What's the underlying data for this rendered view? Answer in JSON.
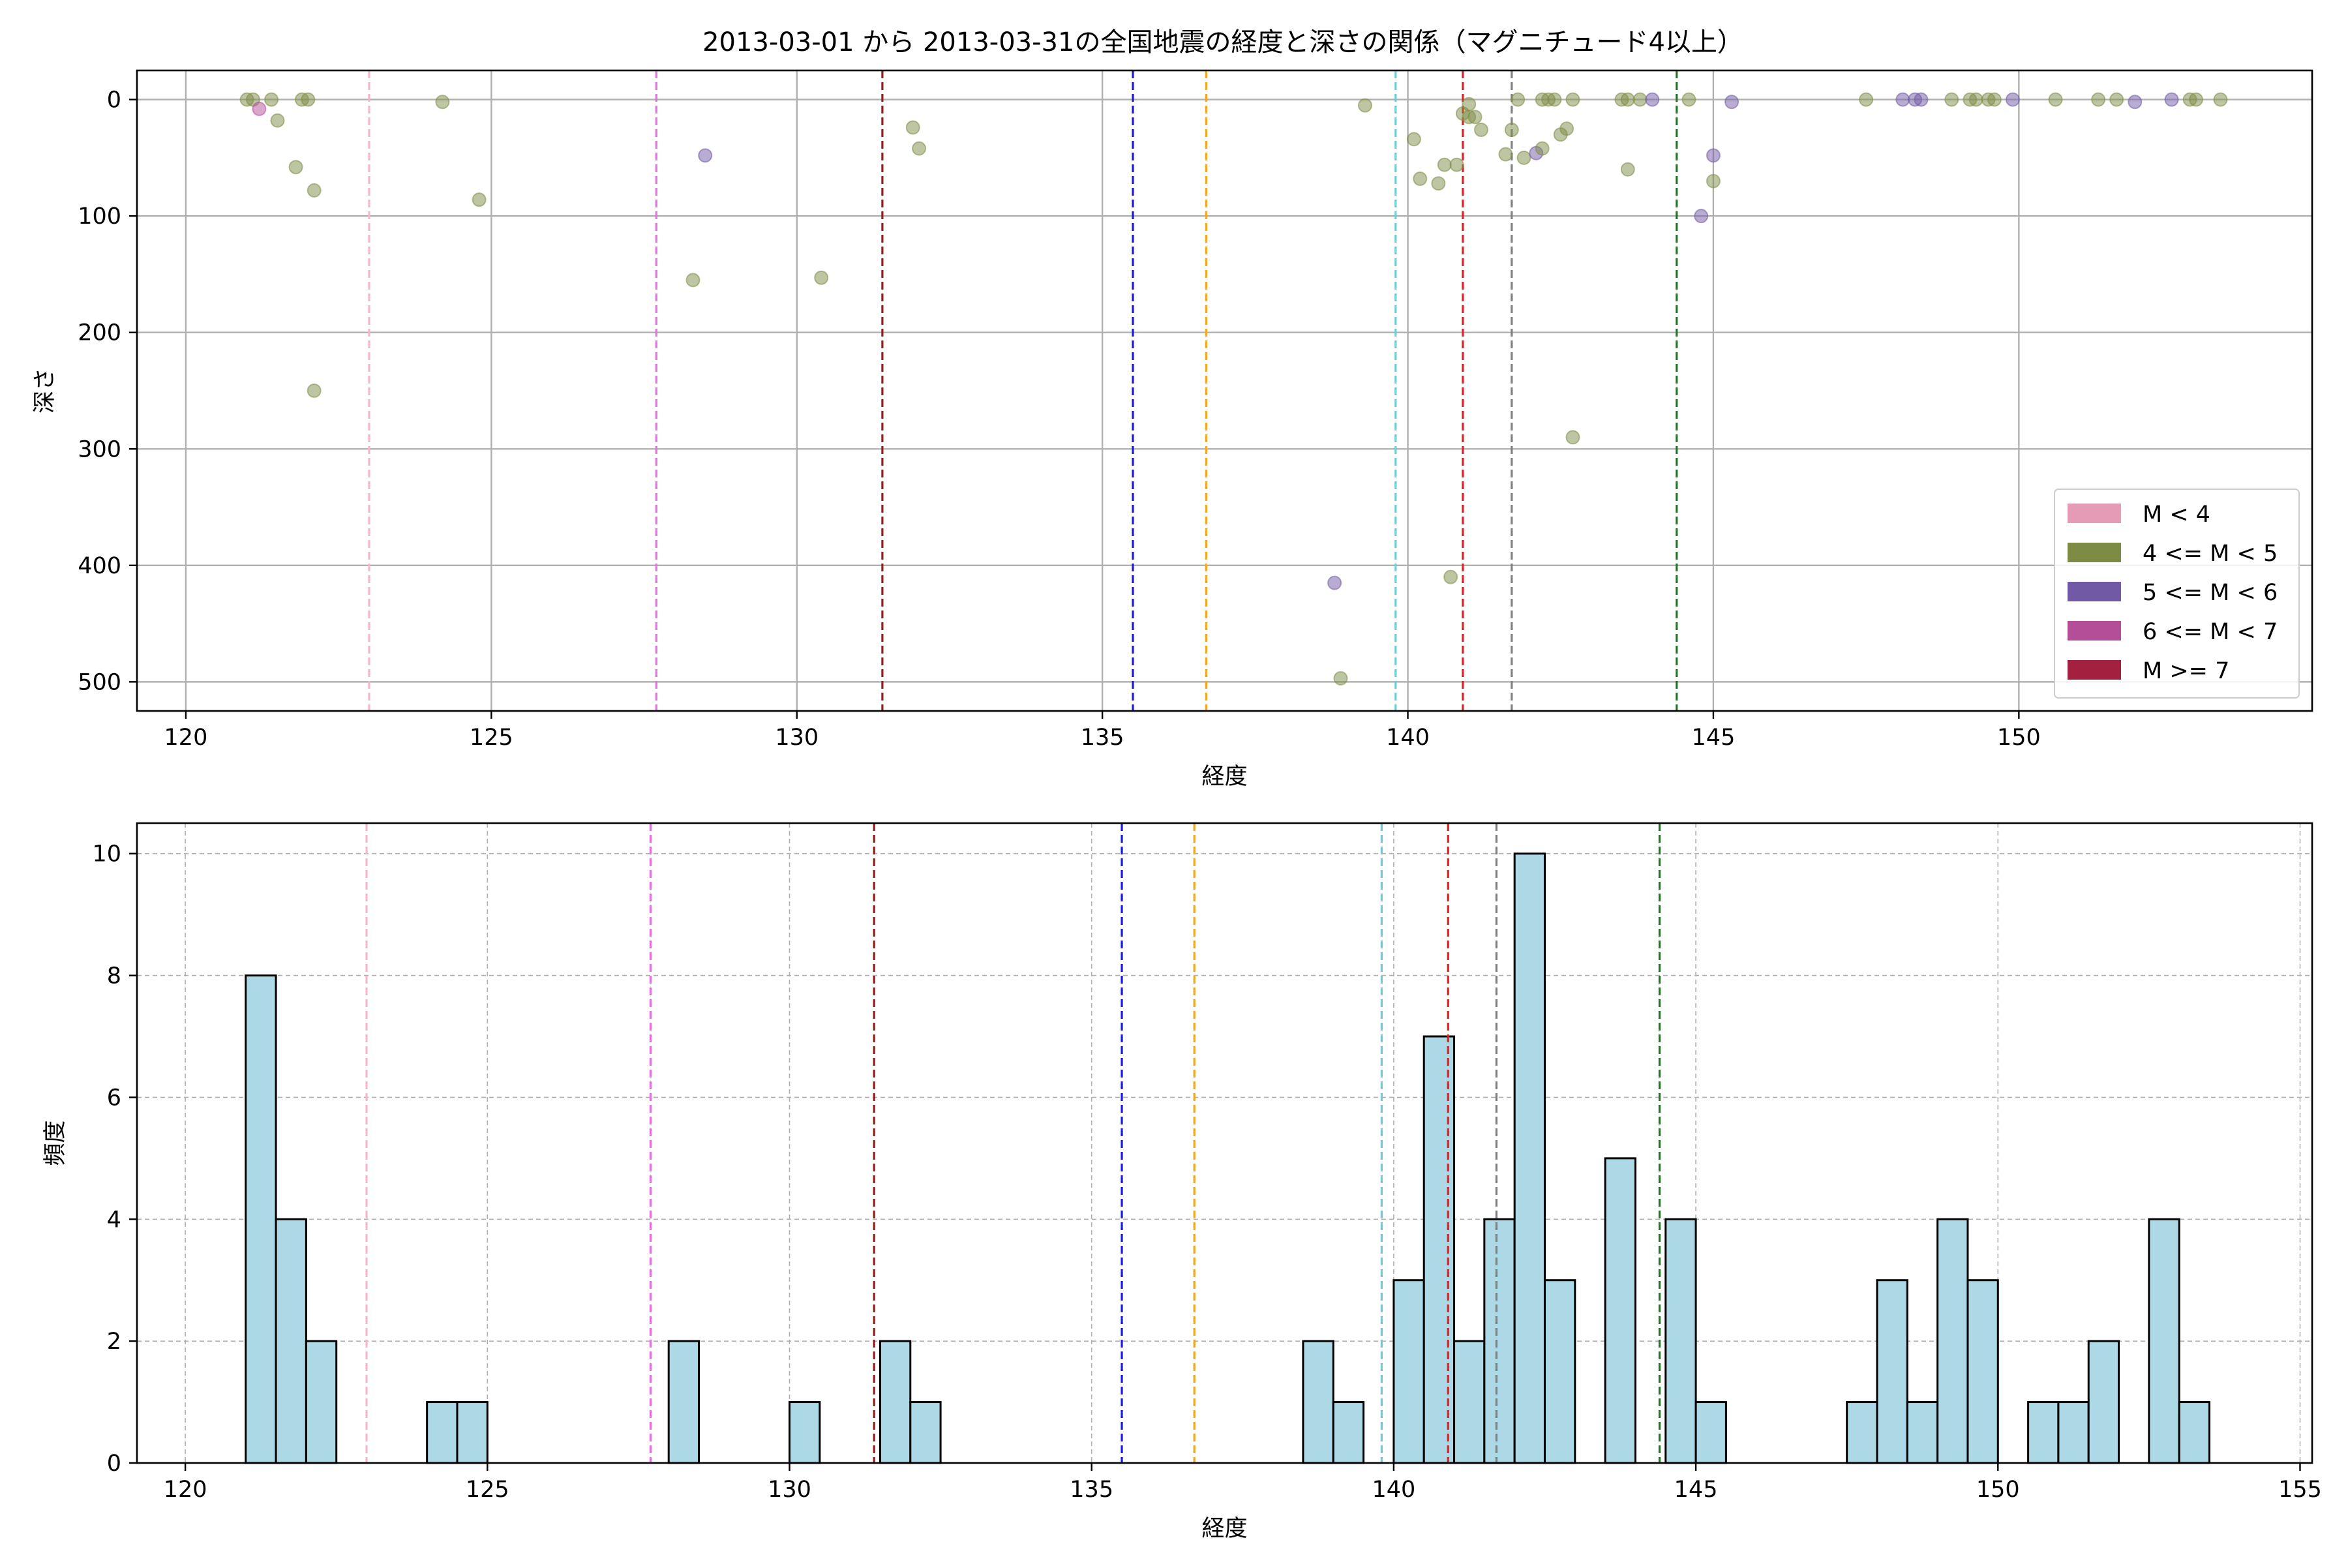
{
  "figure": {
    "title": "2013-03-01 から 2013-03-31の全国地震の経度と深さの関係（マグニチュード4以上）"
  },
  "chart_data": [
    {
      "type": "scatter",
      "xlabel": "経度",
      "ylabel": "深さ",
      "xlim": [
        119.2,
        154.8
      ],
      "ylim": [
        525,
        -25
      ],
      "y_inverted": true,
      "xticks": [
        120,
        125,
        130,
        135,
        140,
        145,
        150
      ],
      "yticks": [
        0,
        100,
        200,
        300,
        400,
        500
      ],
      "grid": true,
      "legend_position": "lower-right",
      "legend": [
        {
          "label": "M < 4",
          "color": "#e59ab5"
        },
        {
          "label": "4 <= M < 5",
          "color": "#7d8c45"
        },
        {
          "label": "5 <= M < 6",
          "color": "#7159a6"
        },
        {
          "label": "6 <= M < 7",
          "color": "#b54e98"
        },
        {
          "label": "M >= 7",
          "color": "#a3203f"
        }
      ],
      "vlines": [
        {
          "x": 123.0,
          "color": "#f4b6c8"
        },
        {
          "x": 127.7,
          "color": "#e770e0"
        },
        {
          "x": 131.4,
          "color": "#9b1a1a"
        },
        {
          "x": 135.5,
          "color": "#1a1ad8"
        },
        {
          "x": 136.7,
          "color": "#f5a623"
        },
        {
          "x": 139.8,
          "color": "#6fcbd8"
        },
        {
          "x": 140.9,
          "color": "#e81c1c"
        },
        {
          "x": 141.7,
          "color": "#808080"
        },
        {
          "x": 144.4,
          "color": "#1a7a1a"
        }
      ],
      "points": [
        {
          "x": 121.0,
          "y": 0,
          "m": 4.3
        },
        {
          "x": 121.1,
          "y": 0,
          "m": 4.2
        },
        {
          "x": 121.2,
          "y": 8,
          "m": 6.1
        },
        {
          "x": 121.4,
          "y": 0,
          "m": 4.8
        },
        {
          "x": 121.5,
          "y": 18,
          "m": 4.2
        },
        {
          "x": 121.8,
          "y": 58,
          "m": 4.1
        },
        {
          "x": 121.9,
          "y": 0,
          "m": 4.4
        },
        {
          "x": 122.0,
          "y": 0,
          "m": 4.6
        },
        {
          "x": 122.1,
          "y": 78,
          "m": 4.1
        },
        {
          "x": 122.1,
          "y": 250,
          "m": 4.0
        },
        {
          "x": 124.2,
          "y": 2,
          "m": 4.2
        },
        {
          "x": 124.8,
          "y": 86,
          "m": 4.3
        },
        {
          "x": 128.3,
          "y": 155,
          "m": 4.2
        },
        {
          "x": 128.5,
          "y": 48,
          "m": 5.2
        },
        {
          "x": 130.4,
          "y": 153,
          "m": 4.1
        },
        {
          "x": 131.9,
          "y": 24,
          "m": 4.9
        },
        {
          "x": 132.0,
          "y": 42,
          "m": 4.0
        },
        {
          "x": 138.8,
          "y": 415,
          "m": 5.1
        },
        {
          "x": 138.9,
          "y": 497,
          "m": 4.2
        },
        {
          "x": 139.3,
          "y": 5,
          "m": 4.0
        },
        {
          "x": 140.1,
          "y": 34,
          "m": 4.1
        },
        {
          "x": 140.2,
          "y": 68,
          "m": 4.0
        },
        {
          "x": 140.5,
          "y": 72,
          "m": 4.2
        },
        {
          "x": 140.6,
          "y": 56,
          "m": 4.1
        },
        {
          "x": 140.7,
          "y": 410,
          "m": 4.3
        },
        {
          "x": 140.8,
          "y": 56,
          "m": 4.0
        },
        {
          "x": 140.9,
          "y": 12,
          "m": 4.5
        },
        {
          "x": 141.0,
          "y": 4,
          "m": 4.3
        },
        {
          "x": 141.0,
          "y": 15,
          "m": 4.2
        },
        {
          "x": 141.1,
          "y": 15,
          "m": 4.1
        },
        {
          "x": 141.2,
          "y": 26,
          "m": 4.0
        },
        {
          "x": 141.6,
          "y": 47,
          "m": 4.1
        },
        {
          "x": 141.7,
          "y": 26,
          "m": 4.0
        },
        {
          "x": 141.8,
          "y": 0,
          "m": 4.2
        },
        {
          "x": 141.9,
          "y": 50,
          "m": 4.0
        },
        {
          "x": 142.1,
          "y": 46,
          "m": 5.3
        },
        {
          "x": 142.2,
          "y": 42,
          "m": 4.4
        },
        {
          "x": 142.2,
          "y": 0,
          "m": 4.1
        },
        {
          "x": 142.3,
          "y": 0,
          "m": 4.8
        },
        {
          "x": 142.4,
          "y": 0,
          "m": 4.9
        },
        {
          "x": 142.5,
          "y": 30,
          "m": 4.0
        },
        {
          "x": 142.6,
          "y": 25,
          "m": 4.1
        },
        {
          "x": 142.7,
          "y": 290,
          "m": 4.0
        },
        {
          "x": 142.7,
          "y": 0,
          "m": 4.2
        },
        {
          "x": 143.5,
          "y": 0,
          "m": 4.6
        },
        {
          "x": 143.6,
          "y": 60,
          "m": 4.1
        },
        {
          "x": 143.6,
          "y": 0,
          "m": 4.3
        },
        {
          "x": 143.8,
          "y": 0,
          "m": 4.1
        },
        {
          "x": 144.0,
          "y": 0,
          "m": 5.1
        },
        {
          "x": 144.6,
          "y": 0,
          "m": 4.2
        },
        {
          "x": 144.8,
          "y": 100,
          "m": 5.0
        },
        {
          "x": 145.0,
          "y": 48,
          "m": 5.2
        },
        {
          "x": 145.0,
          "y": 70,
          "m": 4.2
        },
        {
          "x": 145.3,
          "y": 2,
          "m": 5.0
        },
        {
          "x": 147.5,
          "y": 0,
          "m": 4.1
        },
        {
          "x": 148.1,
          "y": 0,
          "m": 5.3
        },
        {
          "x": 148.3,
          "y": 0,
          "m": 5.0
        },
        {
          "x": 148.4,
          "y": 0,
          "m": 5.1
        },
        {
          "x": 148.9,
          "y": 0,
          "m": 4.2
        },
        {
          "x": 149.2,
          "y": 0,
          "m": 4.4
        },
        {
          "x": 149.3,
          "y": 0,
          "m": 4.1
        },
        {
          "x": 149.5,
          "y": 0,
          "m": 4.2
        },
        {
          "x": 149.6,
          "y": 0,
          "m": 4.2
        },
        {
          "x": 149.9,
          "y": 0,
          "m": 5.3
        },
        {
          "x": 150.6,
          "y": 0,
          "m": 4.2
        },
        {
          "x": 151.3,
          "y": 0,
          "m": 4.1
        },
        {
          "x": 151.6,
          "y": 0,
          "m": 4.2
        },
        {
          "x": 151.9,
          "y": 2,
          "m": 5.1
        },
        {
          "x": 152.5,
          "y": 0,
          "m": 5.2
        },
        {
          "x": 152.8,
          "y": 0,
          "m": 4.6
        },
        {
          "x": 152.9,
          "y": 0,
          "m": 4.4
        },
        {
          "x": 153.3,
          "y": 0,
          "m": 4.2
        }
      ]
    },
    {
      "type": "bar",
      "subtype": "histogram",
      "xlabel": "経度",
      "ylabel": "頻度",
      "xlim": [
        119.2,
        155.2
      ],
      "ylim": [
        0,
        10.5
      ],
      "xticks": [
        120,
        125,
        130,
        135,
        140,
        145,
        150,
        155
      ],
      "yticks": [
        0,
        2,
        4,
        6,
        8,
        10
      ],
      "grid": true,
      "bar_color": "#add8e6",
      "edge_color": "#000000",
      "bin_width": 0.5,
      "vlines": [
        {
          "x": 123.0,
          "color": "#f4b6c8"
        },
        {
          "x": 127.7,
          "color": "#e770e0"
        },
        {
          "x": 131.4,
          "color": "#9b1a1a"
        },
        {
          "x": 135.5,
          "color": "#1a1ad8"
        },
        {
          "x": 136.7,
          "color": "#f5a623"
        },
        {
          "x": 139.8,
          "color": "#6fcbd8"
        },
        {
          "x": 140.9,
          "color": "#e81c1c"
        },
        {
          "x": 141.7,
          "color": "#808080"
        },
        {
          "x": 144.4,
          "color": "#1a7a1a"
        }
      ],
      "bins": [
        {
          "start": 121.0,
          "count": 8
        },
        {
          "start": 121.5,
          "count": 4
        },
        {
          "start": 122.0,
          "count": 2
        },
        {
          "start": 124.0,
          "count": 1
        },
        {
          "start": 124.5,
          "count": 1
        },
        {
          "start": 128.0,
          "count": 2
        },
        {
          "start": 130.0,
          "count": 1
        },
        {
          "start": 131.5,
          "count": 2
        },
        {
          "start": 132.0,
          "count": 1
        },
        {
          "start": 138.5,
          "count": 2
        },
        {
          "start": 139.0,
          "count": 1
        },
        {
          "start": 140.0,
          "count": 3
        },
        {
          "start": 140.5,
          "count": 7
        },
        {
          "start": 141.0,
          "count": 2
        },
        {
          "start": 141.5,
          "count": 4
        },
        {
          "start": 142.0,
          "count": 10
        },
        {
          "start": 142.5,
          "count": 3
        },
        {
          "start": 143.5,
          "count": 5
        },
        {
          "start": 144.5,
          "count": 4
        },
        {
          "start": 145.0,
          "count": 1
        },
        {
          "start": 147.5,
          "count": 1
        },
        {
          "start": 148.0,
          "count": 3
        },
        {
          "start": 148.5,
          "count": 1
        },
        {
          "start": 149.0,
          "count": 4
        },
        {
          "start": 149.5,
          "count": 3
        },
        {
          "start": 150.5,
          "count": 1
        },
        {
          "start": 151.0,
          "count": 1
        },
        {
          "start": 151.5,
          "count": 2
        },
        {
          "start": 152.5,
          "count": 4
        },
        {
          "start": 153.0,
          "count": 1
        }
      ]
    }
  ]
}
